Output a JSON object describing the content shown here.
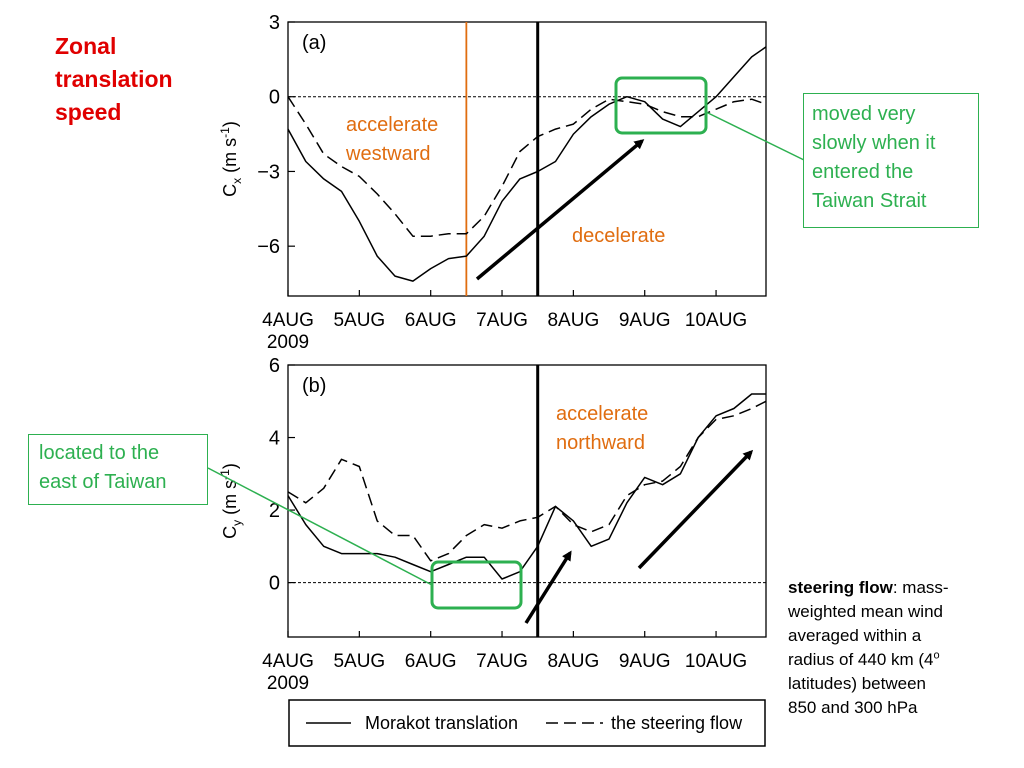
{
  "slide": {
    "title_lines": [
      "Zonal",
      "translation",
      "speed"
    ],
    "callout_strait_lines": [
      "moved very",
      "slowly when it",
      "entered the",
      "Taiwan Strait"
    ],
    "callout_east_lines": [
      "located to the",
      "east of Taiwan"
    ],
    "label_westward_lines": [
      "accelerate",
      "westward"
    ],
    "label_decelerate": "decelerate",
    "label_northward_lines": [
      "accelerate",
      "northward"
    ],
    "note_bold": "steering flow",
    "note_lines": [
      ": mass-",
      "weighted mean wind",
      "averaged within a",
      "radius of 440 km (4",
      "latitudes) between",
      "850 and 300 hPa"
    ],
    "note_superscript": "o",
    "colors": {
      "title": "#e00000",
      "callout": "#2db050",
      "annotation": "#e06d10"
    }
  },
  "chart_data": [
    {
      "type": "line",
      "panel_label": "(a)",
      "ylabel": "C",
      "ylabel_sub": "x",
      "ylabel_units": "(m s",
      "ylabel_exp": "-1",
      "ylabel_close": ")",
      "ylim": [
        -8,
        3
      ],
      "yticks": [
        3,
        0,
        -3,
        -6
      ],
      "xlim": [
        4,
        10.7
      ],
      "xticks": [
        4,
        5,
        6,
        7,
        8,
        9,
        10
      ],
      "xtick_labels": [
        "4AUG",
        "5AUG",
        "6AUG",
        "7AUG",
        "8AUG",
        "9AUG",
        "10AUG"
      ],
      "year_label": "2009",
      "zero_line": true,
      "vline_black": 7.5,
      "vline_orange": 6.5,
      "series": [
        {
          "name": "Morakot translation",
          "style": "solid",
          "x": [
            4.0,
            4.25,
            4.5,
            4.75,
            5.0,
            5.25,
            5.5,
            5.75,
            6.0,
            6.25,
            6.5,
            6.75,
            7.0,
            7.25,
            7.5,
            7.75,
            8.0,
            8.25,
            8.5,
            8.75,
            9.0,
            9.25,
            9.5,
            9.75,
            10.0,
            10.25,
            10.5,
            10.7
          ],
          "y": [
            -1.3,
            -2.6,
            -3.3,
            -3.8,
            -5.0,
            -6.4,
            -7.2,
            -7.4,
            -6.9,
            -6.5,
            -6.4,
            -5.6,
            -4.2,
            -3.3,
            -3.0,
            -2.6,
            -1.5,
            -0.8,
            -0.3,
            0.0,
            -0.2,
            -0.9,
            -1.2,
            -0.6,
            0.0,
            0.8,
            1.6,
            2.0
          ]
        },
        {
          "name": "the steering flow",
          "style": "dashed",
          "x": [
            4.0,
            4.25,
            4.5,
            4.75,
            5.0,
            5.25,
            5.5,
            5.75,
            6.0,
            6.25,
            6.5,
            6.75,
            7.0,
            7.25,
            7.5,
            7.75,
            8.0,
            8.25,
            8.5,
            8.75,
            9.0,
            9.25,
            9.5,
            9.75,
            10.0,
            10.25,
            10.5,
            10.7
          ],
          "y": [
            0.0,
            -1.1,
            -2.3,
            -2.8,
            -3.2,
            -3.9,
            -4.7,
            -5.6,
            -5.6,
            -5.5,
            -5.5,
            -4.8,
            -3.6,
            -2.2,
            -1.6,
            -1.3,
            -1.1,
            -0.5,
            -0.1,
            -0.2,
            -0.3,
            -0.6,
            -0.8,
            -0.8,
            -0.5,
            -0.2,
            -0.1,
            -0.3
          ]
        }
      ]
    },
    {
      "type": "line",
      "panel_label": "(b)",
      "ylabel": "C",
      "ylabel_sub": "y",
      "ylabel_units": "(m s",
      "ylabel_exp": "-1",
      "ylabel_close": ")",
      "ylim": [
        -1.5,
        6
      ],
      "yticks": [
        6,
        4,
        2,
        0
      ],
      "xlim": [
        4,
        10.7
      ],
      "xticks": [
        4,
        5,
        6,
        7,
        8,
        9,
        10
      ],
      "xtick_labels": [
        "4AUG",
        "5AUG",
        "6AUG",
        "7AUG",
        "8AUG",
        "9AUG",
        "10AUG"
      ],
      "year_label": "2009",
      "zero_line": true,
      "vline_black": 7.5,
      "series": [
        {
          "name": "Morakot translation",
          "style": "solid",
          "x": [
            4.0,
            4.25,
            4.5,
            4.75,
            5.0,
            5.25,
            5.5,
            5.75,
            6.0,
            6.25,
            6.5,
            6.75,
            7.0,
            7.25,
            7.5,
            7.75,
            8.0,
            8.25,
            8.5,
            8.75,
            9.0,
            9.25,
            9.5,
            9.75,
            10.0,
            10.25,
            10.5,
            10.7
          ],
          "y": [
            2.4,
            1.6,
            1.0,
            0.8,
            0.8,
            0.8,
            0.7,
            0.5,
            0.3,
            0.5,
            0.7,
            0.7,
            0.1,
            0.3,
            1.0,
            2.1,
            1.7,
            1.0,
            1.2,
            2.2,
            2.9,
            2.7,
            3.0,
            4.0,
            4.6,
            4.8,
            5.2,
            5.2
          ]
        },
        {
          "name": "the steering flow",
          "style": "dashed",
          "x": [
            4.0,
            4.25,
            4.5,
            4.75,
            5.0,
            5.25,
            5.5,
            5.75,
            6.0,
            6.25,
            6.5,
            6.75,
            7.0,
            7.25,
            7.5,
            7.75,
            8.0,
            8.25,
            8.5,
            8.75,
            9.0,
            9.25,
            9.5,
            9.75,
            10.0,
            10.25,
            10.5,
            10.7
          ],
          "y": [
            2.5,
            2.2,
            2.6,
            3.4,
            3.2,
            1.7,
            1.3,
            1.3,
            0.6,
            0.8,
            1.3,
            1.6,
            1.5,
            1.7,
            1.8,
            2.1,
            1.6,
            1.4,
            1.6,
            2.4,
            2.7,
            2.8,
            3.2,
            4.0,
            4.5,
            4.6,
            4.8,
            5.0
          ]
        }
      ]
    }
  ],
  "legend": {
    "solid_label": "Morakot translation",
    "dashed_label": "the steering flow"
  }
}
